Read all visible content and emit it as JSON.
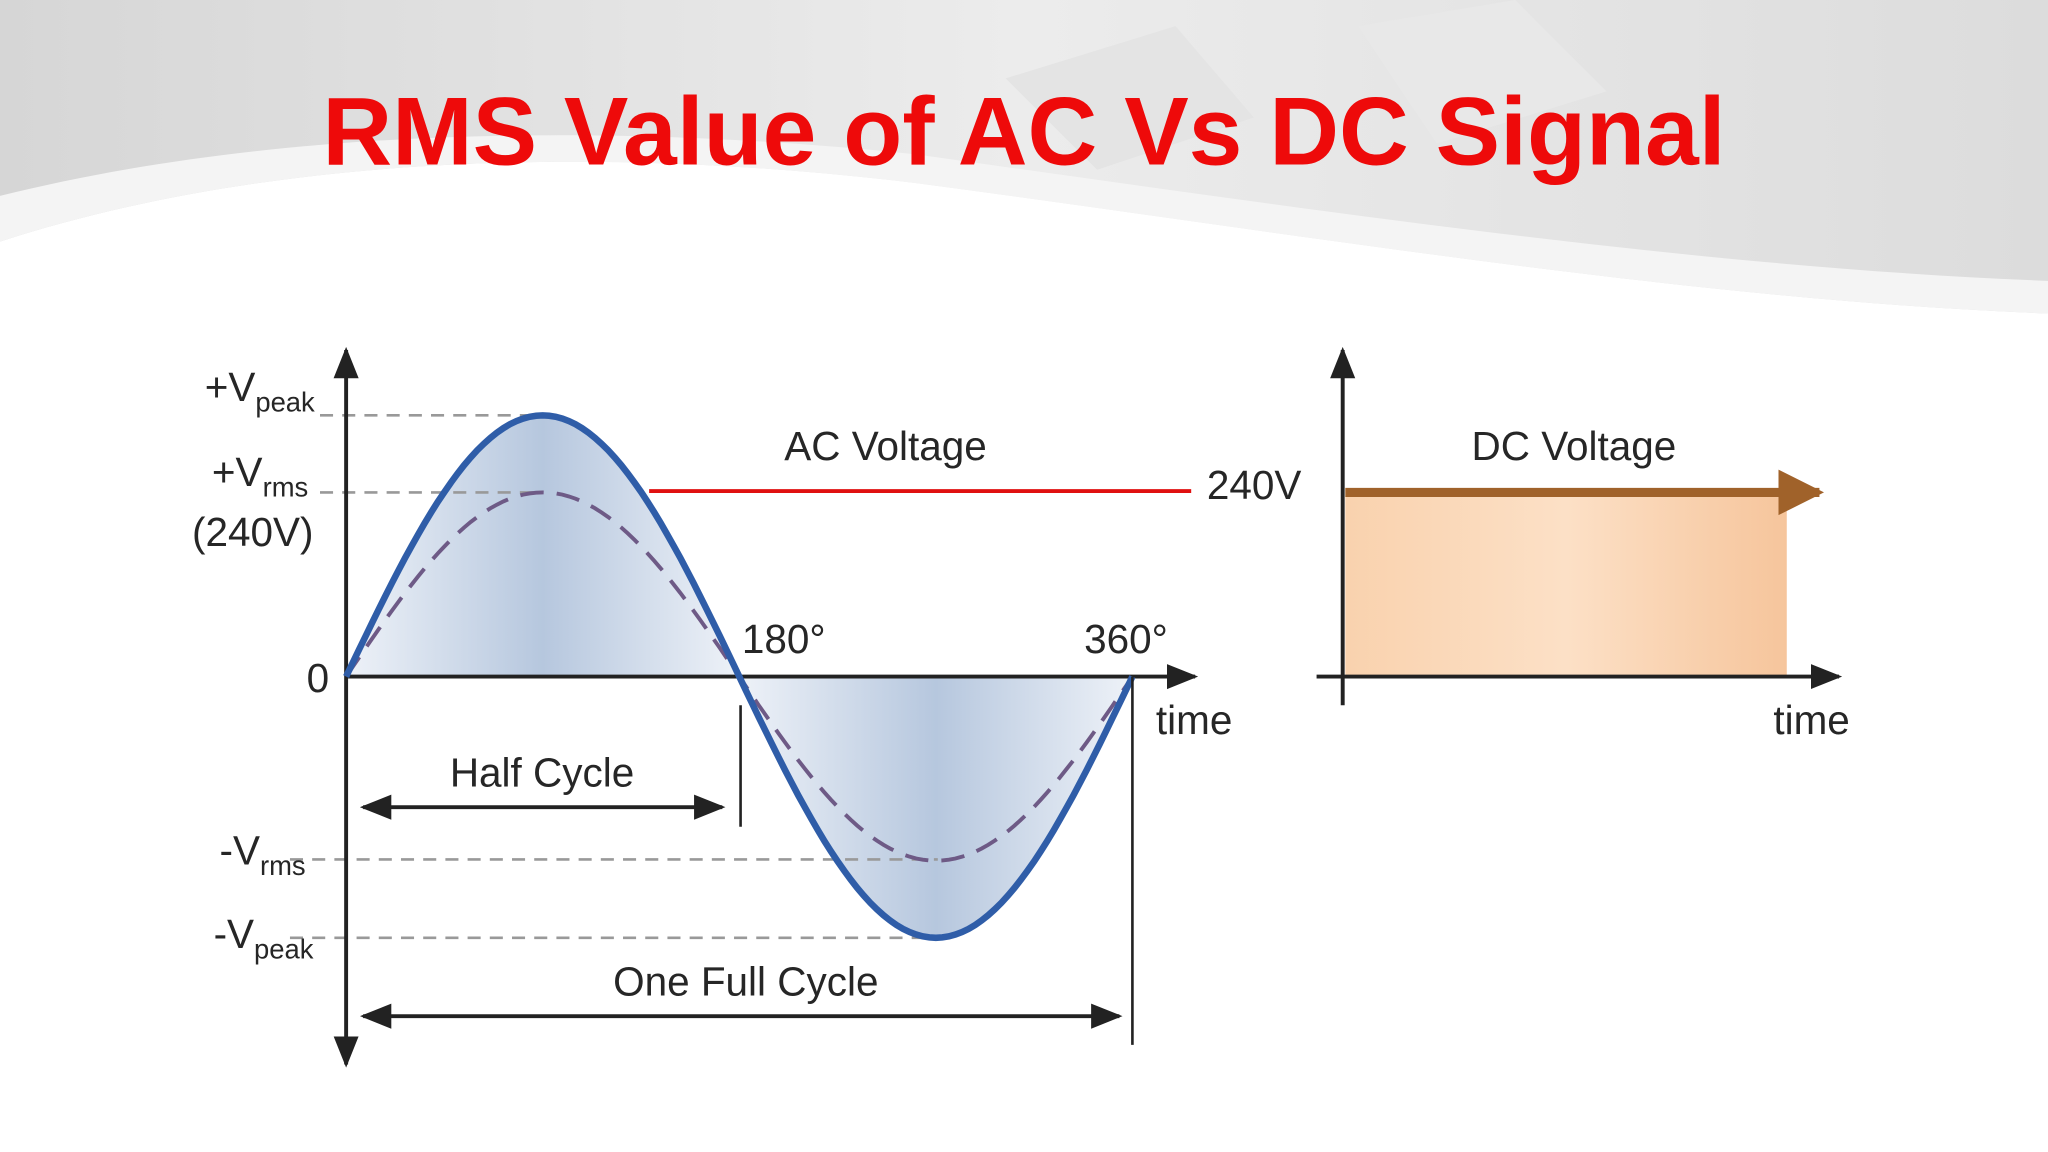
{
  "title": "RMS Value of AC Vs DC Signal",
  "ac_diagram": {
    "title": "AC Voltage",
    "level_label": "240V",
    "y_labels": {
      "peak_pos": {
        "main": "+V",
        "sub": "peak"
      },
      "rms_pos": {
        "main": "+V",
        "sub": "rms"
      },
      "rms_value": "(240V)",
      "zero": "0",
      "rms_neg": {
        "main": "-V",
        "sub": "rms"
      },
      "peak_neg": {
        "main": "-V",
        "sub": "peak"
      }
    },
    "angles": [
      "180°",
      "360°"
    ],
    "x_label": "time",
    "half_cycle": "Half Cycle",
    "full_cycle": "One Full Cycle"
  },
  "dc_diagram": {
    "title": "DC Voltage",
    "x_label": "time"
  }
}
